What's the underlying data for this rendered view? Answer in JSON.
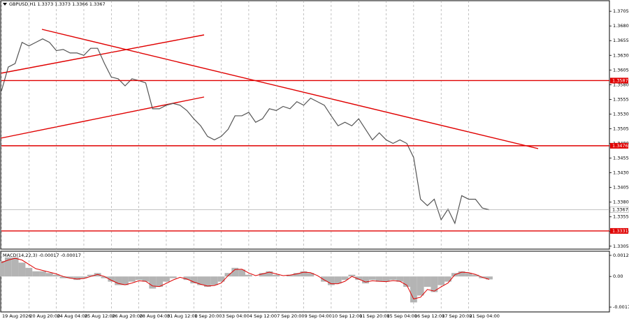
{
  "chart_data": [
    {
      "type": "line",
      "title": "GBPUSD,H1 1.3373 1.3373 1.3366 1.3367",
      "categories": [
        "19 Aug 2026",
        null,
        null,
        null,
        "20 Aug 20:00",
        null,
        null,
        null,
        "24 Aug 04:00",
        null,
        null,
        null,
        "25 Aug 12:00",
        null,
        null,
        null,
        "26 Aug 20:00",
        null,
        null,
        null,
        "28 Aug 04:00",
        null,
        null,
        null,
        "31 Aug 12:00",
        null,
        null,
        null,
        "1 Sep 20:00",
        null,
        null,
        null,
        "3 Sep 04:00",
        null,
        null,
        null,
        "4 Sep 12:00",
        null,
        null,
        null,
        "7 Sep 20:00",
        null,
        null,
        null,
        "9 Sep 04:00",
        null,
        null,
        null,
        "10 Sep 12:00",
        null,
        null,
        null,
        "11 Sep 20:00",
        null,
        null,
        null,
        "15 Sep 04:00",
        null,
        null,
        null,
        "16 Sep 12:00",
        null,
        null,
        null,
        "17 Sep 20:00",
        null,
        null,
        null,
        "21 Sep 04:00",
        null,
        null,
        null
      ],
      "series": [
        {
          "name": "GBPUSD",
          "color": "#555555",
          "values": [
            1.3569,
            1.361,
            1.3616,
            1.3652,
            1.3646,
            1.3652,
            1.3658,
            1.3652,
            1.3638,
            1.364,
            1.3634,
            1.3634,
            1.363,
            1.3642,
            1.3642,
            1.3616,
            1.3593,
            1.359,
            1.3578,
            1.359,
            1.3587,
            1.3583,
            1.3539,
            1.3539,
            1.3545,
            1.3548,
            1.3545,
            1.3536,
            1.3522,
            1.351,
            1.3492,
            1.3486,
            1.3492,
            1.3504,
            1.3527,
            1.3527,
            1.3533,
            1.3516,
            1.3522,
            1.3539,
            1.3536,
            1.3543,
            1.3539,
            1.3551,
            1.3545,
            1.3557,
            1.3551,
            1.3545,
            1.3527,
            1.351,
            1.3516,
            1.351,
            1.3522,
            1.3504,
            1.3486,
            1.3498,
            1.3486,
            1.348,
            1.3486,
            1.348,
            1.3456,
            1.3385,
            1.3374,
            1.3385,
            1.335,
            1.3368,
            1.3344,
            1.3391,
            1.3385,
            1.3385,
            1.337,
            1.3367
          ]
        }
      ],
      "ylim": [
        1.33,
        1.3723
      ],
      "yticks": [
        1.3705,
        {
          "value": 1.368,
          "label": "1.3680"
        },
        1.3655,
        {
          "value": 1.363,
          "label": "1.3630"
        },
        1.3605,
        {
          "value": 1.358,
          "label": "1.3580"
        },
        1.3555,
        {
          "value": 1.353,
          "label": "1.3530"
        },
        1.3505,
        {
          "value": 1.348,
          "label": "1.3480"
        },
        1.3455,
        {
          "value": 1.343,
          "label": "1.3430"
        },
        1.3405,
        {
          "value": 1.338,
          "label": "1.3380"
        },
        1.3355,
        {
          "value": 1.333,
          "label": "1.3330"
        },
        1.3305
      ],
      "levels": [
        1.3587,
        1.3476,
        1.3331
      ],
      "level_color": "#e00000",
      "current_price": 1.3367,
      "grid": true
    },
    {
      "type": "bar",
      "title": "MACD(14,22,3) -0.00017 -0.00017",
      "series": [
        {
          "name": "MACD",
          "color": "#b4b4b4",
          "values": [
            0.0009,
            0.0011,
            0.0011,
            0.0008,
            0.0005,
            0.0003,
            0.0003,
            0.0002,
            0.0001,
            -0.0001,
            -0.0001,
            -0.0002,
            -0.0001,
            0.0001,
            0.0002,
            -0.0001,
            -0.0003,
            -0.0005,
            -0.0005,
            -0.0003,
            -0.0002,
            -0.0003,
            -0.0007,
            -0.0006,
            -0.0003,
            -0.0001,
            0.0,
            -0.0002,
            -0.0004,
            -0.0005,
            -0.0006,
            -0.0005,
            -0.0003,
            0.0002,
            0.0005,
            0.0004,
            0.0001,
            0.0,
            0.0002,
            0.0003,
            0.0001,
            0.0,
            0.0001,
            0.0002,
            0.0003,
            0.0002,
            0.0,
            -0.0003,
            -0.0005,
            -0.0004,
            -0.0002,
            0.0001,
            -0.0002,
            -0.0004,
            -0.0002,
            -0.0003,
            -0.0003,
            -0.0002,
            -0.0003,
            -0.0006,
            -0.0015,
            -0.0011,
            -0.0006,
            -0.0009,
            -0.0005,
            -0.0003,
            0.0002,
            0.0003,
            0.0002,
            0.0001,
            -0.0001,
            -0.00017
          ]
        },
        {
          "name": "Signal",
          "color": "#e00000",
          "values": [
            0.0008,
            0.00095,
            0.00105,
            0.00095,
            0.0007,
            0.00045,
            0.00035,
            0.00025,
            0.00015,
            0.0,
            -0.0001,
            -0.00015,
            -0.00012,
            0.0,
            0.00012,
            0.0,
            -0.00022,
            -0.0004,
            -0.00048,
            -0.00038,
            -0.00025,
            -0.00028,
            -0.00055,
            -0.00058,
            -0.0004,
            -0.0002,
            -5e-05,
            -0.00015,
            -0.00032,
            -0.00045,
            -0.00055,
            -0.00052,
            -0.00038,
            5e-05,
            0.0004,
            0.00042,
            0.0002,
            5e-05,
            0.00015,
            0.00025,
            0.00015,
            5e-05,
            8e-05,
            0.00015,
            0.00025,
            0.00022,
            5e-05,
            -0.0002,
            -0.00042,
            -0.00042,
            -0.00028,
            0.0,
            -0.00015,
            -0.00032,
            -0.00025,
            -0.00028,
            -0.0003,
            -0.00024,
            -0.00028,
            -0.0005,
            -0.0013,
            -0.0012,
            -0.00075,
            -0.00085,
            -0.0006,
            -0.00038,
            0.0001,
            0.00025,
            0.00022,
            0.00012,
            -5e-05,
            -0.00017
          ]
        }
      ],
      "ylim": [
        -0.00205,
        0.00146
      ],
      "yticks": [
        0.00122,
        {
          "value": 0,
          "label": "0.00"
        },
        -0.00177
      ]
    }
  ]
}
